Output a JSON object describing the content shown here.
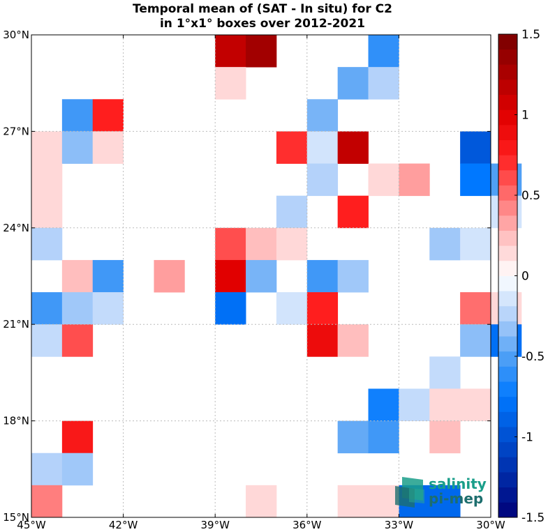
{
  "chart_data": {
    "type": "heatmap",
    "title_lines": [
      "Temporal mean of (SAT - In situ) for C2",
      "in 1°x1° boxes over 2012-2021"
    ],
    "xlim": [
      -45,
      -30
    ],
    "ylim": [
      15,
      30
    ],
    "x_ticks": [
      {
        "value": -45,
        "label": "45°W"
      },
      {
        "value": -42,
        "label": "42°W"
      },
      {
        "value": -39,
        "label": "39°W"
      },
      {
        "value": -36,
        "label": "36°W"
      },
      {
        "value": -33,
        "label": "33°W"
      },
      {
        "value": -30,
        "label": "30°W"
      }
    ],
    "y_ticks": [
      {
        "value": 15,
        "label": "15°N"
      },
      {
        "value": 18,
        "label": "18°N"
      },
      {
        "value": 21,
        "label": "21°N"
      },
      {
        "value": 24,
        "label": "24°N"
      },
      {
        "value": 27,
        "label": "27°N"
      },
      {
        "value": 30,
        "label": "30°N"
      }
    ],
    "grid": true,
    "colorbar": {
      "range": [
        -1.5,
        1.5
      ],
      "levels": 32,
      "placement": "right",
      "ticks": [
        {
          "value": 1.5,
          "label": "1.5"
        },
        {
          "value": 1.0,
          "label": "1"
        },
        {
          "value": 0.5,
          "label": "0.5"
        },
        {
          "value": 0.0,
          "label": "0"
        },
        {
          "value": -0.5,
          "label": "-0.5"
        },
        {
          "value": -1.0,
          "label": "-1"
        },
        {
          "value": -1.5,
          "label": "-1.5"
        }
      ]
    },
    "cells": [
      {
        "lon": -39,
        "lat": 29,
        "value": 1.15
      },
      {
        "lon": -38,
        "lat": 29,
        "value": 1.3
      },
      {
        "lon": -34,
        "lat": 29,
        "value": -0.6
      },
      {
        "lon": -39,
        "lat": 28,
        "value": 0.15
      },
      {
        "lon": -35,
        "lat": 28,
        "value": -0.45
      },
      {
        "lon": -34,
        "lat": 28,
        "value": -0.25
      },
      {
        "lon": -44,
        "lat": 27,
        "value": -0.55
      },
      {
        "lon": -43,
        "lat": 27,
        "value": 0.75
      },
      {
        "lon": -36,
        "lat": 27,
        "value": -0.4
      },
      {
        "lon": -45,
        "lat": 26,
        "value": 0.15
      },
      {
        "lon": -44,
        "lat": 26,
        "value": -0.35
      },
      {
        "lon": -43,
        "lat": 26,
        "value": 0.15
      },
      {
        "lon": -37,
        "lat": 26,
        "value": 0.7
      },
      {
        "lon": -36,
        "lat": 26,
        "value": -0.15
      },
      {
        "lon": -35,
        "lat": 26,
        "value": 1.15
      },
      {
        "lon": -31,
        "lat": 26,
        "value": -0.95
      },
      {
        "lon": -45,
        "lat": 25,
        "value": 0.15
      },
      {
        "lon": -36,
        "lat": 25,
        "value": -0.25
      },
      {
        "lon": -34,
        "lat": 25,
        "value": 0.15
      },
      {
        "lon": -33,
        "lat": 25,
        "value": 0.35
      },
      {
        "lon": -31,
        "lat": 25,
        "value": -0.75
      },
      {
        "lon": -30,
        "lat": 25,
        "value": -0.5
      },
      {
        "lon": -45,
        "lat": 24,
        "value": 0.15
      },
      {
        "lon": -37,
        "lat": 24,
        "value": -0.25
      },
      {
        "lon": -35,
        "lat": 24,
        "value": 0.75
      },
      {
        "lon": -30,
        "lat": 24,
        "value": -0.15
      },
      {
        "lon": -45,
        "lat": 23,
        "value": -0.25
      },
      {
        "lon": -39,
        "lat": 23,
        "value": 0.6
      },
      {
        "lon": -38,
        "lat": 23,
        "value": 0.25
      },
      {
        "lon": -37,
        "lat": 23,
        "value": 0.15
      },
      {
        "lon": -32,
        "lat": 23,
        "value": -0.3
      },
      {
        "lon": -31,
        "lat": 23,
        "value": -0.15
      },
      {
        "lon": -44,
        "lat": 22,
        "value": 0.25
      },
      {
        "lon": -43,
        "lat": 22,
        "value": -0.55
      },
      {
        "lon": -41,
        "lat": 22,
        "value": 0.35
      },
      {
        "lon": -39,
        "lat": 22,
        "value": 1.0
      },
      {
        "lon": -38,
        "lat": 22,
        "value": -0.4
      },
      {
        "lon": -36,
        "lat": 22,
        "value": -0.55
      },
      {
        "lon": -35,
        "lat": 22,
        "value": -0.3
      },
      {
        "lon": -45,
        "lat": 21,
        "value": -0.55
      },
      {
        "lon": -44,
        "lat": 21,
        "value": -0.3
      },
      {
        "lon": -43,
        "lat": 21,
        "value": -0.2
      },
      {
        "lon": -39,
        "lat": 21,
        "value": -0.8
      },
      {
        "lon": -37,
        "lat": 21,
        "value": -0.15
      },
      {
        "lon": -36,
        "lat": 21,
        "value": 0.75
      },
      {
        "lon": -31,
        "lat": 21,
        "value": 0.5
      },
      {
        "lon": -30,
        "lat": 21,
        "value": 0.15
      },
      {
        "lon": -45,
        "lat": 20,
        "value": -0.2
      },
      {
        "lon": -44,
        "lat": 20,
        "value": 0.6
      },
      {
        "lon": -36,
        "lat": 20,
        "value": 0.9
      },
      {
        "lon": -35,
        "lat": 20,
        "value": 0.25
      },
      {
        "lon": -31,
        "lat": 20,
        "value": -0.35
      },
      {
        "lon": -30,
        "lat": 20,
        "value": -0.8
      },
      {
        "lon": -32,
        "lat": 19,
        "value": -0.2
      },
      {
        "lon": -34,
        "lat": 18,
        "value": -0.7
      },
      {
        "lon": -33,
        "lat": 18,
        "value": -0.2
      },
      {
        "lon": -32,
        "lat": 18,
        "value": 0.15
      },
      {
        "lon": -31,
        "lat": 18,
        "value": 0.15
      },
      {
        "lon": -44,
        "lat": 17,
        "value": 0.8
      },
      {
        "lon": -35,
        "lat": 17,
        "value": -0.45
      },
      {
        "lon": -34,
        "lat": 17,
        "value": -0.55
      },
      {
        "lon": -32,
        "lat": 17,
        "value": 0.25
      },
      {
        "lon": -45,
        "lat": 16,
        "value": -0.25
      },
      {
        "lon": -44,
        "lat": 16,
        "value": -0.3
      },
      {
        "lon": -45,
        "lat": 15,
        "value": 0.45
      },
      {
        "lon": -38,
        "lat": 15,
        "value": 0.15
      },
      {
        "lon": -35,
        "lat": 15,
        "value": 0.15
      },
      {
        "lon": -34,
        "lat": 15,
        "value": 0.15
      },
      {
        "lon": -33,
        "lat": 15,
        "value": -0.85
      },
      {
        "lon": -32,
        "lat": 15,
        "value": -0.85
      }
    ]
  },
  "logo": {
    "line1": "salinity",
    "line2": "pi-mep",
    "color1": "#1a9e8a",
    "color2": "#1d6e6e"
  }
}
